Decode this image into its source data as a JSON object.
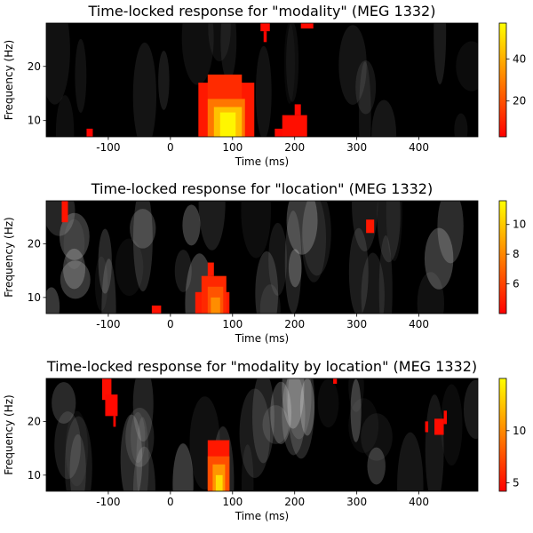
{
  "chart_data": [
    {
      "type": "heatmap",
      "title": "Time-locked response for \"modality\" (MEG 1332)",
      "xlabel": "Time (ms)",
      "ylabel": "Frequency (Hz)",
      "xlim": [
        -200,
        495
      ],
      "ylim": [
        7,
        28
      ],
      "xticks": [
        -100,
        0,
        100,
        200,
        300,
        400
      ],
      "yticks": [
        10,
        20
      ],
      "colorbar": {
        "vmin": 3,
        "vmax": 57,
        "ticks": [
          20,
          40
        ],
        "colormap": "autumn"
      },
      "background_colormap": "gray",
      "blobs": [
        {
          "t0": -135,
          "t1": -125,
          "f0": 7,
          "f1": 8.5,
          "level": 4
        },
        {
          "t0": 45,
          "t1": 135,
          "f0": 7,
          "f1": 17,
          "level": 8
        },
        {
          "t0": 60,
          "t1": 115,
          "f0": 7,
          "f1": 18.5,
          "level": 12
        },
        {
          "t0": 60,
          "t1": 120,
          "f0": 7,
          "f1": 14,
          "level": 28
        },
        {
          "t0": 70,
          "t1": 115,
          "f0": 7,
          "f1": 12.5,
          "level": 44
        },
        {
          "t0": 80,
          "t1": 105,
          "f0": 7,
          "f1": 11.5,
          "level": 55
        },
        {
          "t0": 168,
          "t1": 185,
          "f0": 7,
          "f1": 8.5,
          "level": 5
        },
        {
          "t0": 180,
          "t1": 220,
          "f0": 7,
          "f1": 11,
          "level": 6
        },
        {
          "t0": 200,
          "t1": 210,
          "f0": 11,
          "f1": 13,
          "level": 5
        },
        {
          "t0": 145,
          "t1": 160,
          "f0": 26.5,
          "f1": 28,
          "level": 5
        },
        {
          "t0": 150,
          "t1": 155,
          "f0": 24.5,
          "f1": 26.5,
          "level": 4
        },
        {
          "t0": 210,
          "t1": 230,
          "f0": 27,
          "f1": 28,
          "level": 5
        }
      ]
    },
    {
      "type": "heatmap",
      "title": "Time-locked response for \"location\" (MEG 1332)",
      "xlabel": "Time (ms)",
      "ylabel": "Frequency (Hz)",
      "xlim": [
        -200,
        495
      ],
      "ylim": [
        7,
        28
      ],
      "xticks": [
        -100,
        0,
        100,
        200,
        300,
        400
      ],
      "yticks": [
        10,
        20
      ],
      "colorbar": {
        "vmin": 4,
        "vmax": 11.6,
        "ticks": [
          6,
          8,
          10
        ],
        "colormap": "autumn"
      },
      "background_colormap": "gray",
      "blobs": [
        {
          "t0": -175,
          "t1": -165,
          "f0": 24,
          "f1": 28,
          "level": 4.6
        },
        {
          "t0": -30,
          "t1": -15,
          "f0": 7,
          "f1": 8.5,
          "level": 4.5
        },
        {
          "t0": 40,
          "t1": 95,
          "f0": 7,
          "f1": 11,
          "level": 4.8
        },
        {
          "t0": 50,
          "t1": 90,
          "f0": 7,
          "f1": 14,
          "level": 5.2
        },
        {
          "t0": 60,
          "t1": 70,
          "f0": 14,
          "f1": 16.5,
          "level": 4.8
        },
        {
          "t0": 60,
          "t1": 85,
          "f0": 7,
          "f1": 12,
          "level": 6.5
        },
        {
          "t0": 65,
          "t1": 80,
          "f0": 7,
          "f1": 10,
          "level": 8.2
        },
        {
          "t0": 315,
          "t1": 328,
          "f0": 22,
          "f1": 24.5,
          "level": 4.7
        }
      ]
    },
    {
      "type": "heatmap",
      "title": "Time-locked response for \"modality by location\" (MEG 1332)",
      "xlabel": "Time (ms)",
      "ylabel": "Frequency (Hz)",
      "xlim": [
        -200,
        495
      ],
      "ylim": [
        7,
        28
      ],
      "xticks": [
        -100,
        0,
        100,
        200,
        300,
        400
      ],
      "yticks": [
        10,
        20
      ],
      "colorbar": {
        "vmin": 4.2,
        "vmax": 15,
        "ticks": [
          5,
          10
        ],
        "colormap": "autumn"
      },
      "background_colormap": "gray",
      "blobs": [
        {
          "t0": -110,
          "t1": -95,
          "f0": 24,
          "f1": 28,
          "level": 4.8
        },
        {
          "t0": -105,
          "t1": -85,
          "f0": 21,
          "f1": 25,
          "level": 4.6
        },
        {
          "t0": -92,
          "t1": -88,
          "f0": 19,
          "f1": 21,
          "level": 4.5
        },
        {
          "t0": 60,
          "t1": 95,
          "f0": 7,
          "f1": 16.5,
          "level": 5.2
        },
        {
          "t0": 60,
          "t1": 95,
          "f0": 7,
          "f1": 13.5,
          "level": 7.5
        },
        {
          "t0": 68,
          "t1": 88,
          "f0": 7,
          "f1": 12,
          "level": 10.5
        },
        {
          "t0": 73,
          "t1": 84,
          "f0": 7,
          "f1": 10,
          "level": 13.5
        },
        {
          "t0": 262,
          "t1": 268,
          "f0": 27,
          "f1": 28,
          "level": 4.6
        },
        {
          "t0": 410,
          "t1": 415,
          "f0": 18,
          "f1": 20,
          "level": 4.6
        },
        {
          "t0": 425,
          "t1": 440,
          "f0": 17.5,
          "f1": 20.5,
          "level": 4.7
        },
        {
          "t0": 440,
          "t1": 445,
          "f0": 19.5,
          "f1": 22,
          "level": 4.6
        }
      ]
    }
  ]
}
